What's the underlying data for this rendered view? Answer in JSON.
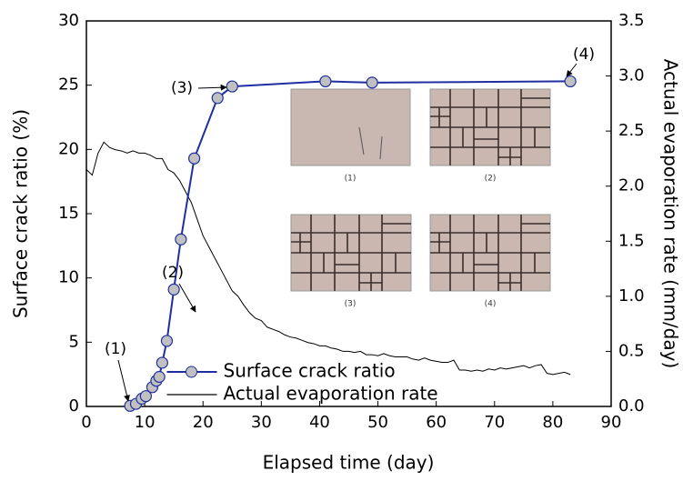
{
  "chart_data": {
    "type": "line",
    "xlabel": "Elapsed time (day)",
    "ylabel": "Surface crack ratio (%)",
    "y2label": "Actual evaporation rate (mm/day)",
    "xlim": [
      0,
      90
    ],
    "xticks": [
      0,
      10,
      20,
      30,
      40,
      50,
      60,
      70,
      80,
      90
    ],
    "ylim": [
      0,
      30
    ],
    "yticks": [
      0,
      5,
      10,
      15,
      20,
      25,
      30
    ],
    "y2lim": [
      0,
      3.5
    ],
    "y2ticks": [
      {
        "value": 0,
        "label": "0.0"
      },
      0.5,
      {
        "value": 1,
        "label": "1.0"
      },
      1.5,
      {
        "value": 2,
        "label": "2.0"
      },
      2.5,
      {
        "value": 3,
        "label": "3.0"
      },
      3.5
    ],
    "legend": "lower center",
    "series": [
      {
        "name": "Surface crack ratio",
        "color": "#1f2fa0",
        "marker": "circle",
        "marker_color": "#c0c0c0",
        "x": [
          7.5,
          8.5,
          9.5,
          10.2,
          11.3,
          12,
          12.5,
          13,
          13.8,
          15,
          16.2,
          18.5,
          22.5,
          25,
          41,
          49,
          83
        ],
        "values": [
          0.05,
          0.2,
          0.6,
          0.8,
          1.5,
          2.0,
          2.3,
          3.4,
          5.1,
          9.1,
          13,
          19.3,
          24,
          24.9,
          25.3,
          25.2,
          25.3
        ]
      },
      {
        "name": "Actual evaporation rate",
        "color": "#000000",
        "axis": "y2",
        "x": [
          0,
          1,
          2,
          3,
          4,
          5,
          6,
          7,
          8,
          9,
          10,
          11,
          12,
          13,
          14,
          15,
          16,
          17,
          18,
          19,
          20,
          21,
          22,
          23,
          24,
          25,
          26,
          27,
          28,
          29,
          30,
          31,
          32,
          33,
          34,
          35,
          36,
          37,
          38,
          39,
          40,
          41,
          42,
          43,
          44,
          45,
          46,
          47,
          48,
          49,
          50,
          51,
          52,
          53,
          54,
          55,
          56,
          57,
          58,
          59,
          60,
          61,
          62,
          63,
          64,
          65,
          66,
          67,
          68,
          69,
          70,
          71,
          72,
          73,
          74,
          75,
          76,
          77,
          78,
          79,
          80,
          81,
          82,
          83
        ],
        "values": [
          2.15,
          2.1,
          2.3,
          2.4,
          2.35,
          2.33,
          2.32,
          2.3,
          2.32,
          2.3,
          2.3,
          2.28,
          2.25,
          2.25,
          2.15,
          2.12,
          2.05,
          1.95,
          1.85,
          1.7,
          1.55,
          1.45,
          1.35,
          1.25,
          1.15,
          1.05,
          1.0,
          0.92,
          0.85,
          0.8,
          0.78,
          0.72,
          0.7,
          0.68,
          0.65,
          0.63,
          0.62,
          0.6,
          0.58,
          0.57,
          0.55,
          0.55,
          0.53,
          0.52,
          0.5,
          0.5,
          0.49,
          0.5,
          0.47,
          0.47,
          0.46,
          0.48,
          0.46,
          0.45,
          0.45,
          0.45,
          0.43,
          0.42,
          0.44,
          0.42,
          0.41,
          0.4,
          0.4,
          0.42,
          0.33,
          0.33,
          0.32,
          0.33,
          0.32,
          0.34,
          0.33,
          0.35,
          0.34,
          0.35,
          0.36,
          0.37,
          0.35,
          0.37,
          0.38,
          0.3,
          0.29,
          0.3,
          0.31,
          0.29
        ]
      }
    ],
    "annotations": [
      "(1)",
      "(2)",
      "(3)",
      "(4)"
    ],
    "inset_labels": [
      "(1)",
      "(2)",
      "(3)",
      "(4)"
    ]
  }
}
